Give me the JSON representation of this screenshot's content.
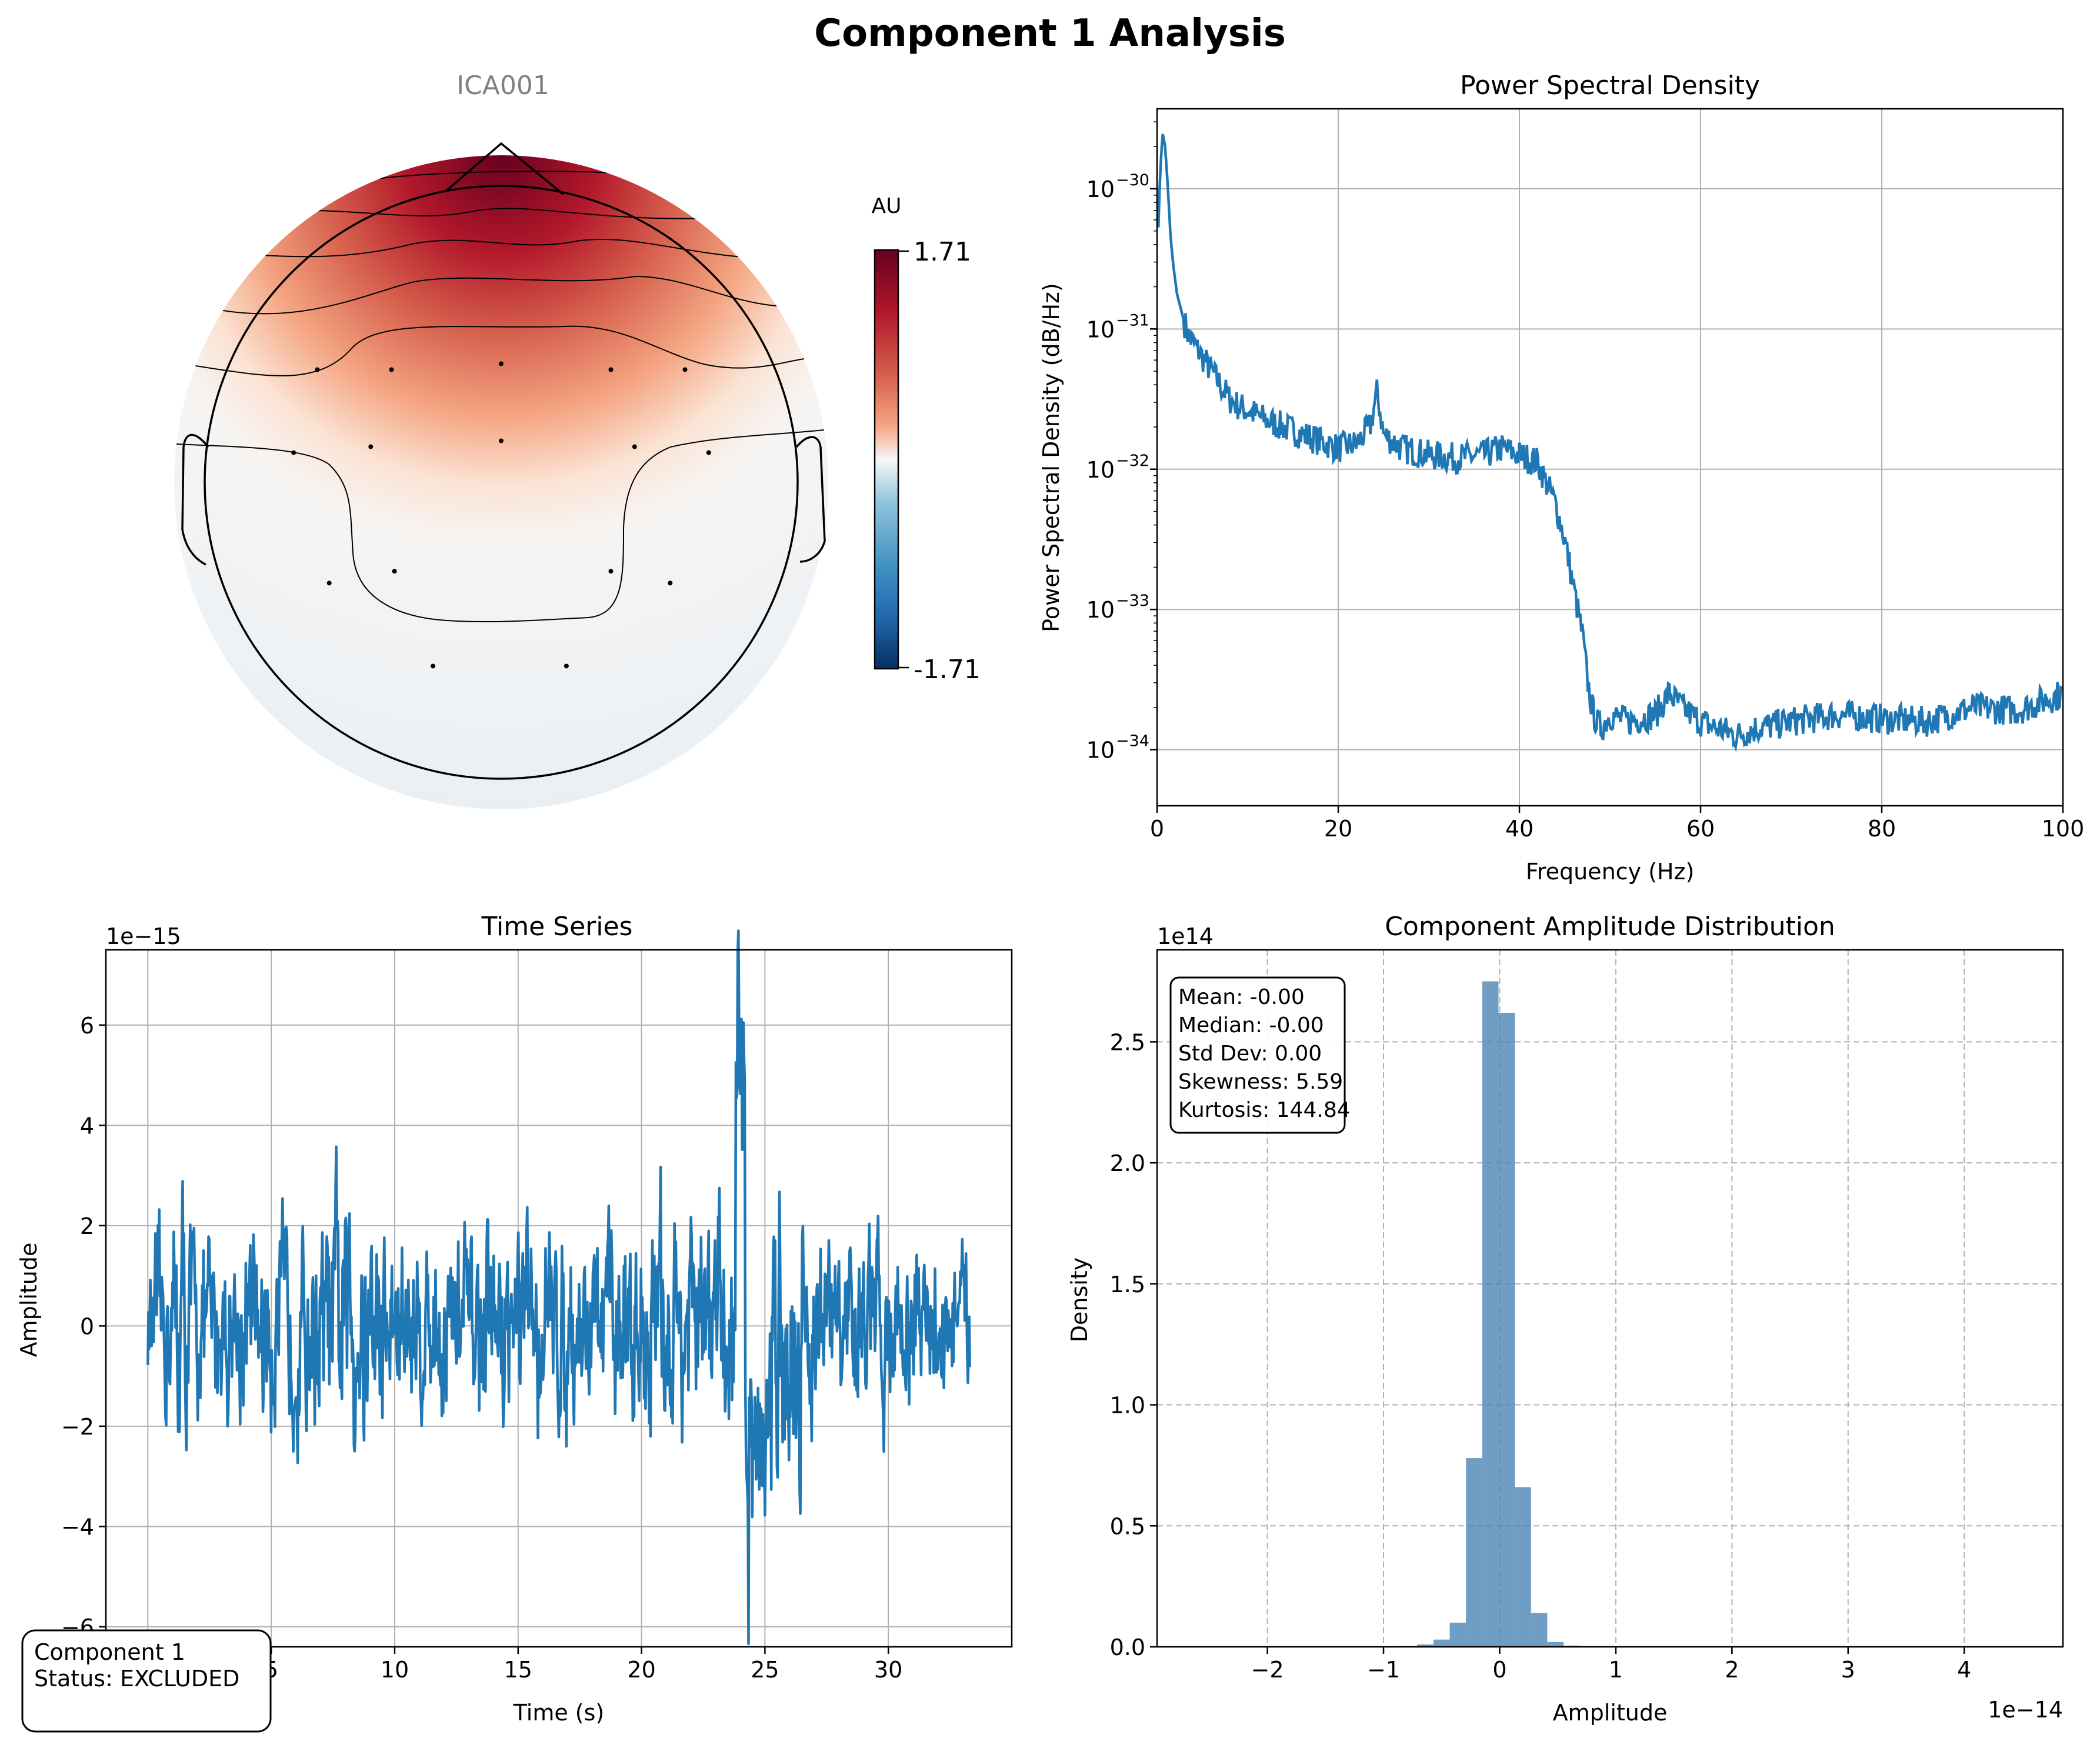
{
  "figure": {
    "title": "Component 1 Analysis"
  },
  "status_box": {
    "line1": "Component 1",
    "line2": "Status: EXCLUDED"
  },
  "colors": {
    "line": "#1f77b4",
    "hist": "#4682b4",
    "grid": "#b0b0b0",
    "topo_hot": "#67001f",
    "topo_cold": "#053061"
  },
  "chart_data": [
    {
      "type": "heatmap",
      "name": "topomap",
      "title": "ICA001",
      "colorbar": {
        "label": "AU",
        "max_label": "1.71",
        "min_label": "-1.71",
        "vmin": -1.71,
        "vmax": 1.71,
        "colormap": "RdBu_r"
      },
      "sensors": [
        {
          "x": -0.62,
          "y": 0.38
        },
        {
          "x": -0.37,
          "y": 0.38
        },
        {
          "x": 0.0,
          "y": 0.4
        },
        {
          "x": 0.37,
          "y": 0.38
        },
        {
          "x": 0.62,
          "y": 0.38
        },
        {
          "x": -0.7,
          "y": 0.1
        },
        {
          "x": -0.44,
          "y": 0.12
        },
        {
          "x": 0.0,
          "y": 0.14
        },
        {
          "x": 0.45,
          "y": 0.12
        },
        {
          "x": 0.7,
          "y": 0.1
        },
        {
          "x": -0.58,
          "y": -0.34
        },
        {
          "x": -0.36,
          "y": -0.3
        },
        {
          "x": 0.37,
          "y": -0.3
        },
        {
          "x": 0.57,
          "y": -0.34
        },
        {
          "x": -0.23,
          "y": -0.62
        },
        {
          "x": 0.22,
          "y": -0.62
        }
      ]
    },
    {
      "type": "line",
      "name": "psd",
      "title": "Power Spectral Density",
      "xlabel": "Frequency (Hz)",
      "ylabel": "Power Spectral Density (dB/Hz)",
      "xlim": [
        0,
        100
      ],
      "ylim_log10": [
        -34.4,
        -29.43
      ],
      "log_y": true,
      "xticks": [
        "0",
        "20",
        "40",
        "60",
        "80",
        "100"
      ],
      "yticks": [
        {
          "label": "10",
          "exp": "−30"
        },
        {
          "label": "10",
          "exp": "−31"
        },
        {
          "label": "10",
          "exp": "−32"
        },
        {
          "label": "10",
          "exp": "−33"
        },
        {
          "label": "10",
          "exp": "−34"
        }
      ],
      "grid": true,
      "x": [
        0.0,
        0.3,
        0.6,
        0.9,
        1.2,
        1.5,
        1.8,
        2.2,
        2.6,
        3.0,
        3.5,
        4.0,
        5.0,
        6.0,
        7.0,
        8.0,
        9.0,
        10.0,
        12.0,
        14.0,
        16.0,
        18.0,
        20.0,
        22.0,
        23.5,
        24.3,
        25.0,
        27.0,
        30.0,
        33.0,
        36.0,
        38.0,
        40.0,
        42.0,
        43.0,
        44.0,
        45.0,
        46.0,
        47.0,
        47.5,
        48.0,
        48.5,
        49.0,
        50.0,
        52.0,
        55.0,
        56.5,
        58.0,
        60.0,
        62.0,
        64.0,
        66.0,
        70.0,
        75.0,
        80.0,
        85.0,
        90.0,
        95.0,
        100.0
      ],
      "y_log10": [
        -30.6,
        -29.95,
        -29.6,
        -29.7,
        -30.0,
        -30.35,
        -30.55,
        -30.75,
        -30.85,
        -30.95,
        -31.05,
        -31.1,
        -31.2,
        -31.3,
        -31.4,
        -31.5,
        -31.55,
        -31.58,
        -31.65,
        -31.7,
        -31.75,
        -31.8,
        -31.85,
        -31.82,
        -31.7,
        -31.45,
        -31.75,
        -31.85,
        -31.9,
        -31.92,
        -31.9,
        -31.85,
        -31.9,
        -31.95,
        -32.1,
        -32.25,
        -32.5,
        -32.85,
        -33.2,
        -33.5,
        -33.7,
        -33.8,
        -33.85,
        -33.75,
        -33.8,
        -33.75,
        -33.6,
        -33.7,
        -33.8,
        -33.85,
        -33.9,
        -33.85,
        -33.8,
        -33.75,
        -33.78,
        -33.8,
        -33.7,
        -33.72,
        -33.6
      ]
    },
    {
      "type": "line",
      "name": "time_series",
      "title": "Time Series",
      "xlabel": "Time (s)",
      "ylabel": "Amplitude",
      "offset_text": "1e−15",
      "xlim": [
        -1.7,
        35.0
      ],
      "ylim": [
        -6.4,
        7.5
      ],
      "xticks": [
        "5",
        "10",
        "15",
        "20",
        "25",
        "30"
      ],
      "yticks": [
        "6",
        "4",
        "2",
        "0",
        "−2",
        "−4",
        "−6"
      ],
      "grid": true,
      "t_range": [
        0.0,
        33.3
      ],
      "envelope": [
        {
          "t": 0.0,
          "amp": 1.8
        },
        {
          "t": 1.0,
          "amp": 3.2
        },
        {
          "t": 1.2,
          "amp": 5.0
        },
        {
          "t": 2.0,
          "amp": 2.8
        },
        {
          "t": 7.0,
          "amp": 3.0
        },
        {
          "t": 7.7,
          "amp": 4.4
        },
        {
          "t": 10.0,
          "amp": 3.0
        },
        {
          "t": 19.0,
          "amp": 3.0
        },
        {
          "t": 20.0,
          "amp": 3.5
        },
        {
          "t": 23.5,
          "amp": 3.5
        },
        {
          "t": 23.9,
          "amp": 6.9
        },
        {
          "t": 24.6,
          "amp": 5.8
        },
        {
          "t": 26.0,
          "amp": 5.4
        },
        {
          "t": 27.0,
          "amp": 3.0
        },
        {
          "t": 33.3,
          "amp": 2.2
        }
      ]
    },
    {
      "type": "bar",
      "name": "amplitude_histogram",
      "title": "Component Amplitude Distribution",
      "xlabel": "Amplitude",
      "ylabel": "Density",
      "x_offset_text": "1e−14",
      "y_offset_text": "1e14",
      "xlim": [
        -2.95,
        4.85
      ],
      "ylim": [
        0,
        2.88
      ],
      "xticks": [
        {
          "value": -2,
          "label": "−2"
        },
        {
          "value": -1,
          "label": "−1"
        },
        {
          "value": 0,
          "label": "0"
        },
        {
          "value": 1,
          "label": "1"
        },
        {
          "value": 2,
          "label": "2"
        },
        {
          "value": 3,
          "label": "3"
        },
        {
          "value": 4,
          "label": "4"
        }
      ],
      "yticks": [
        {
          "value": 0.0,
          "label": "0.0"
        },
        {
          "value": 0.5,
          "label": "0.5"
        },
        {
          "value": 1.0,
          "label": "1.0"
        },
        {
          "value": 1.5,
          "label": "1.5"
        },
        {
          "value": 2.0,
          "label": "2.0"
        },
        {
          "value": 2.5,
          "label": "2.5"
        }
      ],
      "grid": true,
      "bin_width": 0.14,
      "bin_edges_start": -0.85,
      "values": [
        0.003,
        0.01,
        0.03,
        0.1,
        0.78,
        2.75,
        2.62,
        0.66,
        0.14,
        0.02,
        0.005
      ],
      "stats": {
        "mean": "Mean: -0.00",
        "median": "Median: -0.00",
        "std": "Std Dev: 0.00",
        "skewness": "Skewness: 5.59",
        "kurtosis": "Kurtosis: 144.84"
      }
    }
  ]
}
